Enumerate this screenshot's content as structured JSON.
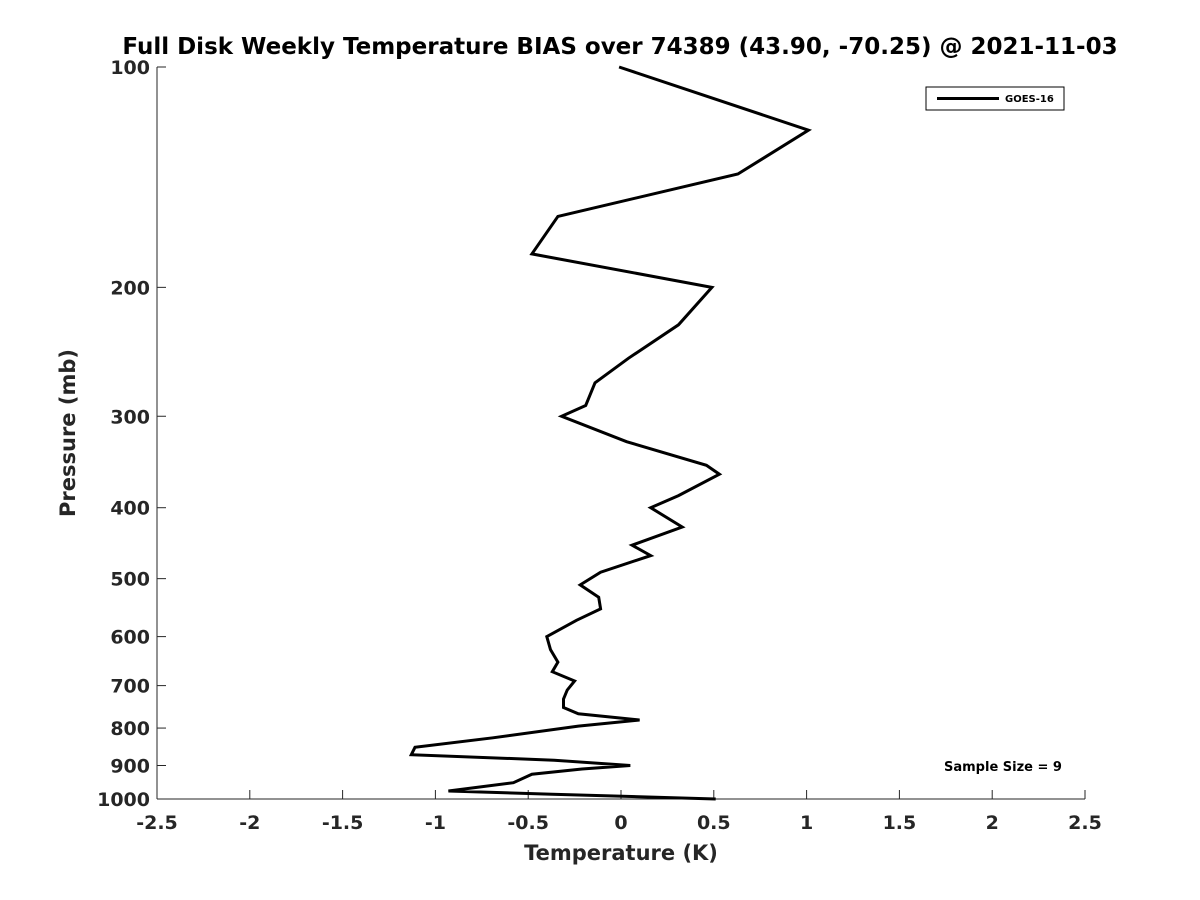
{
  "chart_data": {
    "type": "line",
    "title": "Full Disk Weekly Temperature BIAS over 74389 (43.90, -70.25) @ 2021-11-03",
    "xlabel": "Temperature (K)",
    "ylabel": "Pressure (mb)",
    "xlim": [
      -2.5,
      2.5
    ],
    "ylim": [
      100,
      1000
    ],
    "y_scale": "log",
    "y_direction": "reversed",
    "x_ticks": [
      "-2.5",
      "-2",
      "-1.5",
      "-1",
      "-0.5",
      "0",
      "0.5",
      "1",
      "1.5",
      "2",
      "2.5"
    ],
    "x_tick_values": [
      -2.5,
      -2,
      -1.5,
      -1,
      -0.5,
      0,
      0.5,
      1,
      1.5,
      2,
      2.5
    ],
    "y_ticks": [
      "100",
      "200",
      "300",
      "400",
      "500",
      "600",
      "700",
      "800",
      "900",
      "1000"
    ],
    "y_tick_values": [
      100,
      200,
      300,
      400,
      500,
      600,
      700,
      800,
      900,
      1000
    ],
    "grid": false,
    "legend_position": "top-right",
    "series": [
      {
        "name": "GOES-16",
        "color": "#000000",
        "points": [
          {
            "x": -0.01,
            "p": 100
          },
          {
            "x": 1.01,
            "p": 122
          },
          {
            "x": 0.63,
            "p": 140
          },
          {
            "x": -0.34,
            "p": 160
          },
          {
            "x": -0.48,
            "p": 180
          },
          {
            "x": 0.49,
            "p": 200
          },
          {
            "x": 0.31,
            "p": 225
          },
          {
            "x": 0.04,
            "p": 250
          },
          {
            "x": -0.14,
            "p": 270
          },
          {
            "x": -0.19,
            "p": 290
          },
          {
            "x": -0.32,
            "p": 300
          },
          {
            "x": 0.03,
            "p": 325
          },
          {
            "x": 0.46,
            "p": 350
          },
          {
            "x": 0.53,
            "p": 360
          },
          {
            "x": 0.31,
            "p": 385
          },
          {
            "x": 0.16,
            "p": 400
          },
          {
            "x": 0.33,
            "p": 425
          },
          {
            "x": 0.06,
            "p": 450
          },
          {
            "x": 0.16,
            "p": 465
          },
          {
            "x": -0.11,
            "p": 490
          },
          {
            "x": -0.22,
            "p": 510
          },
          {
            "x": -0.12,
            "p": 530
          },
          {
            "x": -0.11,
            "p": 550
          },
          {
            "x": -0.24,
            "p": 570
          },
          {
            "x": -0.4,
            "p": 600
          },
          {
            "x": -0.38,
            "p": 625
          },
          {
            "x": -0.34,
            "p": 650
          },
          {
            "x": -0.37,
            "p": 670
          },
          {
            "x": -0.25,
            "p": 690
          },
          {
            "x": -0.29,
            "p": 710
          },
          {
            "x": -0.31,
            "p": 730
          },
          {
            "x": -0.31,
            "p": 750
          },
          {
            "x": -0.23,
            "p": 765
          },
          {
            "x": 0.1,
            "p": 780
          },
          {
            "x": -0.23,
            "p": 795
          },
          {
            "x": -0.69,
            "p": 825
          },
          {
            "x": -1.11,
            "p": 850
          },
          {
            "x": -1.13,
            "p": 870
          },
          {
            "x": -0.36,
            "p": 885
          },
          {
            "x": 0.05,
            "p": 900
          },
          {
            "x": -0.21,
            "p": 910
          },
          {
            "x": -0.48,
            "p": 925
          },
          {
            "x": -0.58,
            "p": 950
          },
          {
            "x": -0.93,
            "p": 975
          },
          {
            "x": -0.37,
            "p": 985
          },
          {
            "x": 0.51,
            "p": 1000
          }
        ]
      }
    ],
    "legend": [
      {
        "label": "GOES-16",
        "color": "#000000"
      }
    ],
    "annotation": "Sample Size = 9"
  }
}
